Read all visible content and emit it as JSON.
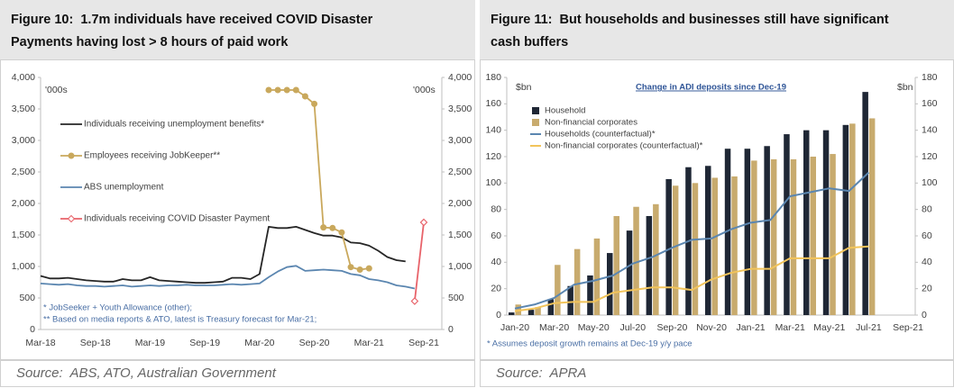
{
  "chart_data": [
    {
      "type": "line",
      "title": [
        "Figure 10:  1.7m individuals have received COVID Disaster",
        "Payments having lost > 8 hours of paid work"
      ],
      "y_unit": "'000s",
      "y2_unit": "'000s",
      "categories": [
        "Mar-18",
        null,
        null,
        null,
        null,
        null,
        "Sep-18",
        null,
        null,
        null,
        null,
        null,
        "Mar-19",
        null,
        null,
        null,
        null,
        null,
        "Sep-19",
        null,
        null,
        null,
        null,
        null,
        "Mar-20",
        null,
        null,
        null,
        null,
        null,
        "Sep-20",
        null,
        null,
        null,
        null,
        null,
        "Mar-21",
        null,
        null,
        null,
        null,
        null,
        "Sep-21"
      ],
      "ylim": [
        0,
        4000
      ],
      "yticks": [
        0,
        500,
        {
          "value": 1000,
          "label": "1,000"
        },
        {
          "value": 1500,
          "label": "1,500"
        },
        {
          "value": 2000,
          "label": "2,000"
        },
        {
          "value": 2500,
          "label": "2,500"
        },
        {
          "value": 3000,
          "label": "3,000"
        },
        {
          "value": 3500,
          "label": "3,500"
        },
        {
          "value": 4000,
          "label": "4,000"
        }
      ],
      "y2lim": [
        0,
        4000
      ],
      "y2ticks": [
        0,
        500,
        {
          "value": 1000,
          "label": "1,000"
        },
        {
          "value": 1500,
          "label": "1,500"
        },
        {
          "value": 2000,
          "label": "2,000"
        },
        {
          "value": 2500,
          "label": "2,500"
        },
        {
          "value": 3000,
          "label": "3,000"
        },
        {
          "value": 3500,
          "label": "3,500"
        },
        {
          "value": 4000,
          "label": "4,000"
        }
      ],
      "grid": false,
      "legend": "left",
      "series": [
        {
          "name": "Individuals receiving unemployment benefits*",
          "color": "#262626",
          "marker": "none",
          "values": [
            850,
            810,
            810,
            820,
            800,
            780,
            770,
            760,
            760,
            800,
            780,
            780,
            830,
            780,
            770,
            760,
            750,
            740,
            740,
            750,
            760,
            820,
            820,
            800,
            880,
            1630,
            1610,
            1610,
            1630,
            1580,
            1530,
            1490,
            1490,
            1460,
            1380,
            1370,
            1330,
            1250,
            1150,
            1100,
            1080,
            null,
            null
          ]
        },
        {
          "name": "Employees receiving JobKeeper**",
          "color": "#c9a85c",
          "marker": "circle",
          "values": [
            null,
            null,
            null,
            null,
            null,
            null,
            null,
            null,
            null,
            null,
            null,
            null,
            null,
            null,
            null,
            null,
            null,
            null,
            null,
            null,
            null,
            null,
            null,
            null,
            null,
            3800,
            3800,
            3800,
            3800,
            3700,
            3580,
            1620,
            1610,
            1540,
            990,
            950,
            970,
            null,
            null,
            null,
            null,
            null,
            null
          ]
        },
        {
          "name": "ABS unemployment",
          "color": "#5b86b0",
          "marker": "none",
          "values": [
            730,
            720,
            710,
            720,
            700,
            690,
            690,
            680,
            690,
            700,
            680,
            690,
            700,
            690,
            700,
            700,
            710,
            700,
            700,
            700,
            710,
            720,
            710,
            720,
            730,
            830,
            920,
            990,
            1010,
            930,
            940,
            950,
            940,
            930,
            880,
            860,
            800,
            780,
            750,
            700,
            680,
            650,
            null
          ]
        },
        {
          "name": "Individuals receiving COVID Disaster Payment",
          "color": "#e8636a",
          "marker": "diamond",
          "values": [
            null,
            null,
            null,
            null,
            null,
            null,
            null,
            null,
            null,
            null,
            null,
            null,
            null,
            null,
            null,
            null,
            null,
            null,
            null,
            null,
            null,
            null,
            null,
            null,
            null,
            null,
            null,
            null,
            null,
            null,
            null,
            null,
            null,
            null,
            null,
            null,
            null,
            null,
            null,
            null,
            null,
            450,
            1700
          ]
        }
      ],
      "notes": [
        "* JobSeeker + Youth Allowance (other);",
        "** Based on media reports & ATO, latest is Treasury forecast for Mar-21;"
      ],
      "source": "Source:  ABS, ATO, Australian Government"
    },
    {
      "type": "bar",
      "title": [
        "Figure 11:  But households and businesses still have significant",
        "cash buffers"
      ],
      "subtitle": "Change in ADI deposits since Dec-19",
      "y_unit": "$bn",
      "y2_unit": "$bn",
      "categories": [
        "Jan-20",
        null,
        "Mar-20",
        null,
        "May-20",
        null,
        "Jul-20",
        null,
        "Sep-20",
        null,
        "Nov-20",
        null,
        "Jan-21",
        null,
        "Mar-21",
        null,
        "May-21",
        null,
        "Jul-21",
        null,
        "Sep-21"
      ],
      "ylim": [
        0,
        180
      ],
      "yticks": [
        0,
        20,
        40,
        60,
        80,
        100,
        120,
        140,
        160,
        180
      ],
      "y2lim": [
        0,
        180
      ],
      "y2ticks": [
        0,
        20,
        40,
        60,
        80,
        100,
        120,
        140,
        160,
        180
      ],
      "grid": false,
      "legend": "upper left",
      "series": [
        {
          "name": "Household",
          "color": "#1f2735",
          "type": "bar",
          "values": [
            2,
            4,
            12,
            22,
            30,
            47,
            64,
            75,
            103,
            112,
            113,
            126,
            126,
            128,
            137,
            140,
            140,
            144,
            169,
            null,
            null
          ]
        },
        {
          "name": "Non-financial corporates",
          "color": "#c8ab6e",
          "type": "bar",
          "values": [
            8,
            6,
            38,
            50,
            58,
            75,
            82,
            84,
            98,
            100,
            104,
            105,
            117,
            118,
            118,
            120,
            122,
            145,
            149,
            null,
            null
          ]
        },
        {
          "name": "Households (counterfactual)*",
          "color": "#5b86b0",
          "type": "line",
          "values": [
            5,
            8,
            13,
            23,
            26,
            30,
            39,
            44,
            51,
            57,
            58,
            65,
            70,
            72,
            90,
            93,
            96,
            94,
            108,
            null,
            null
          ]
        },
        {
          "name": "Non-financial corporates (counterfactual)*",
          "color": "#f2c45a",
          "type": "line",
          "values": [
            3,
            5,
            9,
            10,
            10,
            17,
            19,
            21,
            21,
            19,
            27,
            32,
            35,
            35,
            43,
            43,
            43,
            51,
            52,
            null,
            null
          ]
        }
      ],
      "notes": [
        "* Assumes deposit growth remains at Dec-19 y/y pace"
      ],
      "source": "Source:  APRA"
    }
  ]
}
